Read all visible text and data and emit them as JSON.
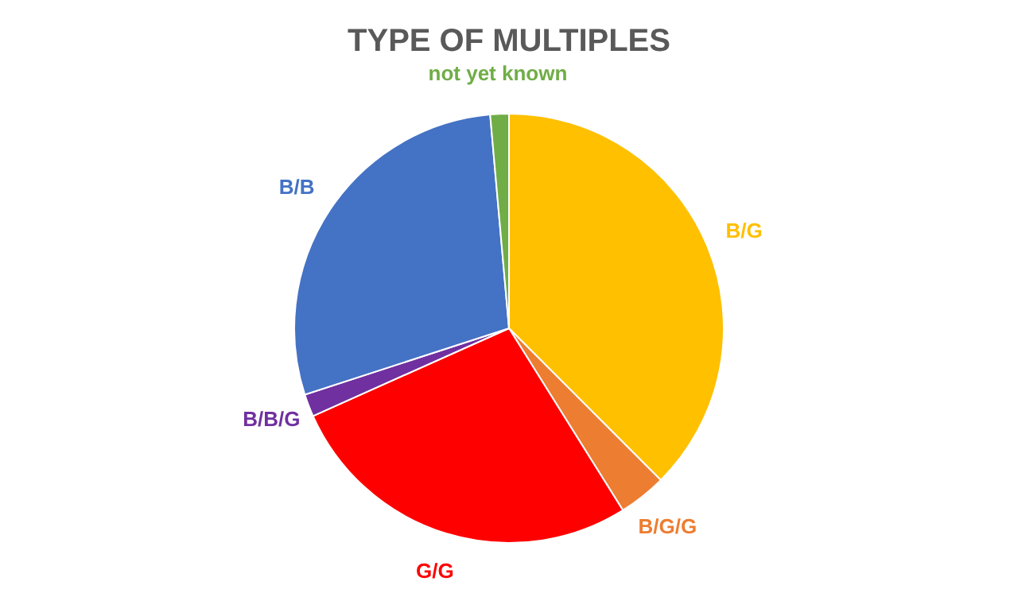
{
  "chart_data": {
    "type": "pie",
    "title": "TYPE OF MULTIPLES",
    "categories": [
      "B/G",
      "B/G/G",
      "G/G",
      "B/B/G",
      "B/B",
      "not yet known"
    ],
    "values": [
      37.5,
      3.6,
      27.2,
      1.7,
      28.6,
      1.4
    ],
    "colors": [
      "#ffc000",
      "#ed7d31",
      "#ff0000",
      "#7030a0",
      "#4472c4",
      "#70ad47"
    ]
  }
}
